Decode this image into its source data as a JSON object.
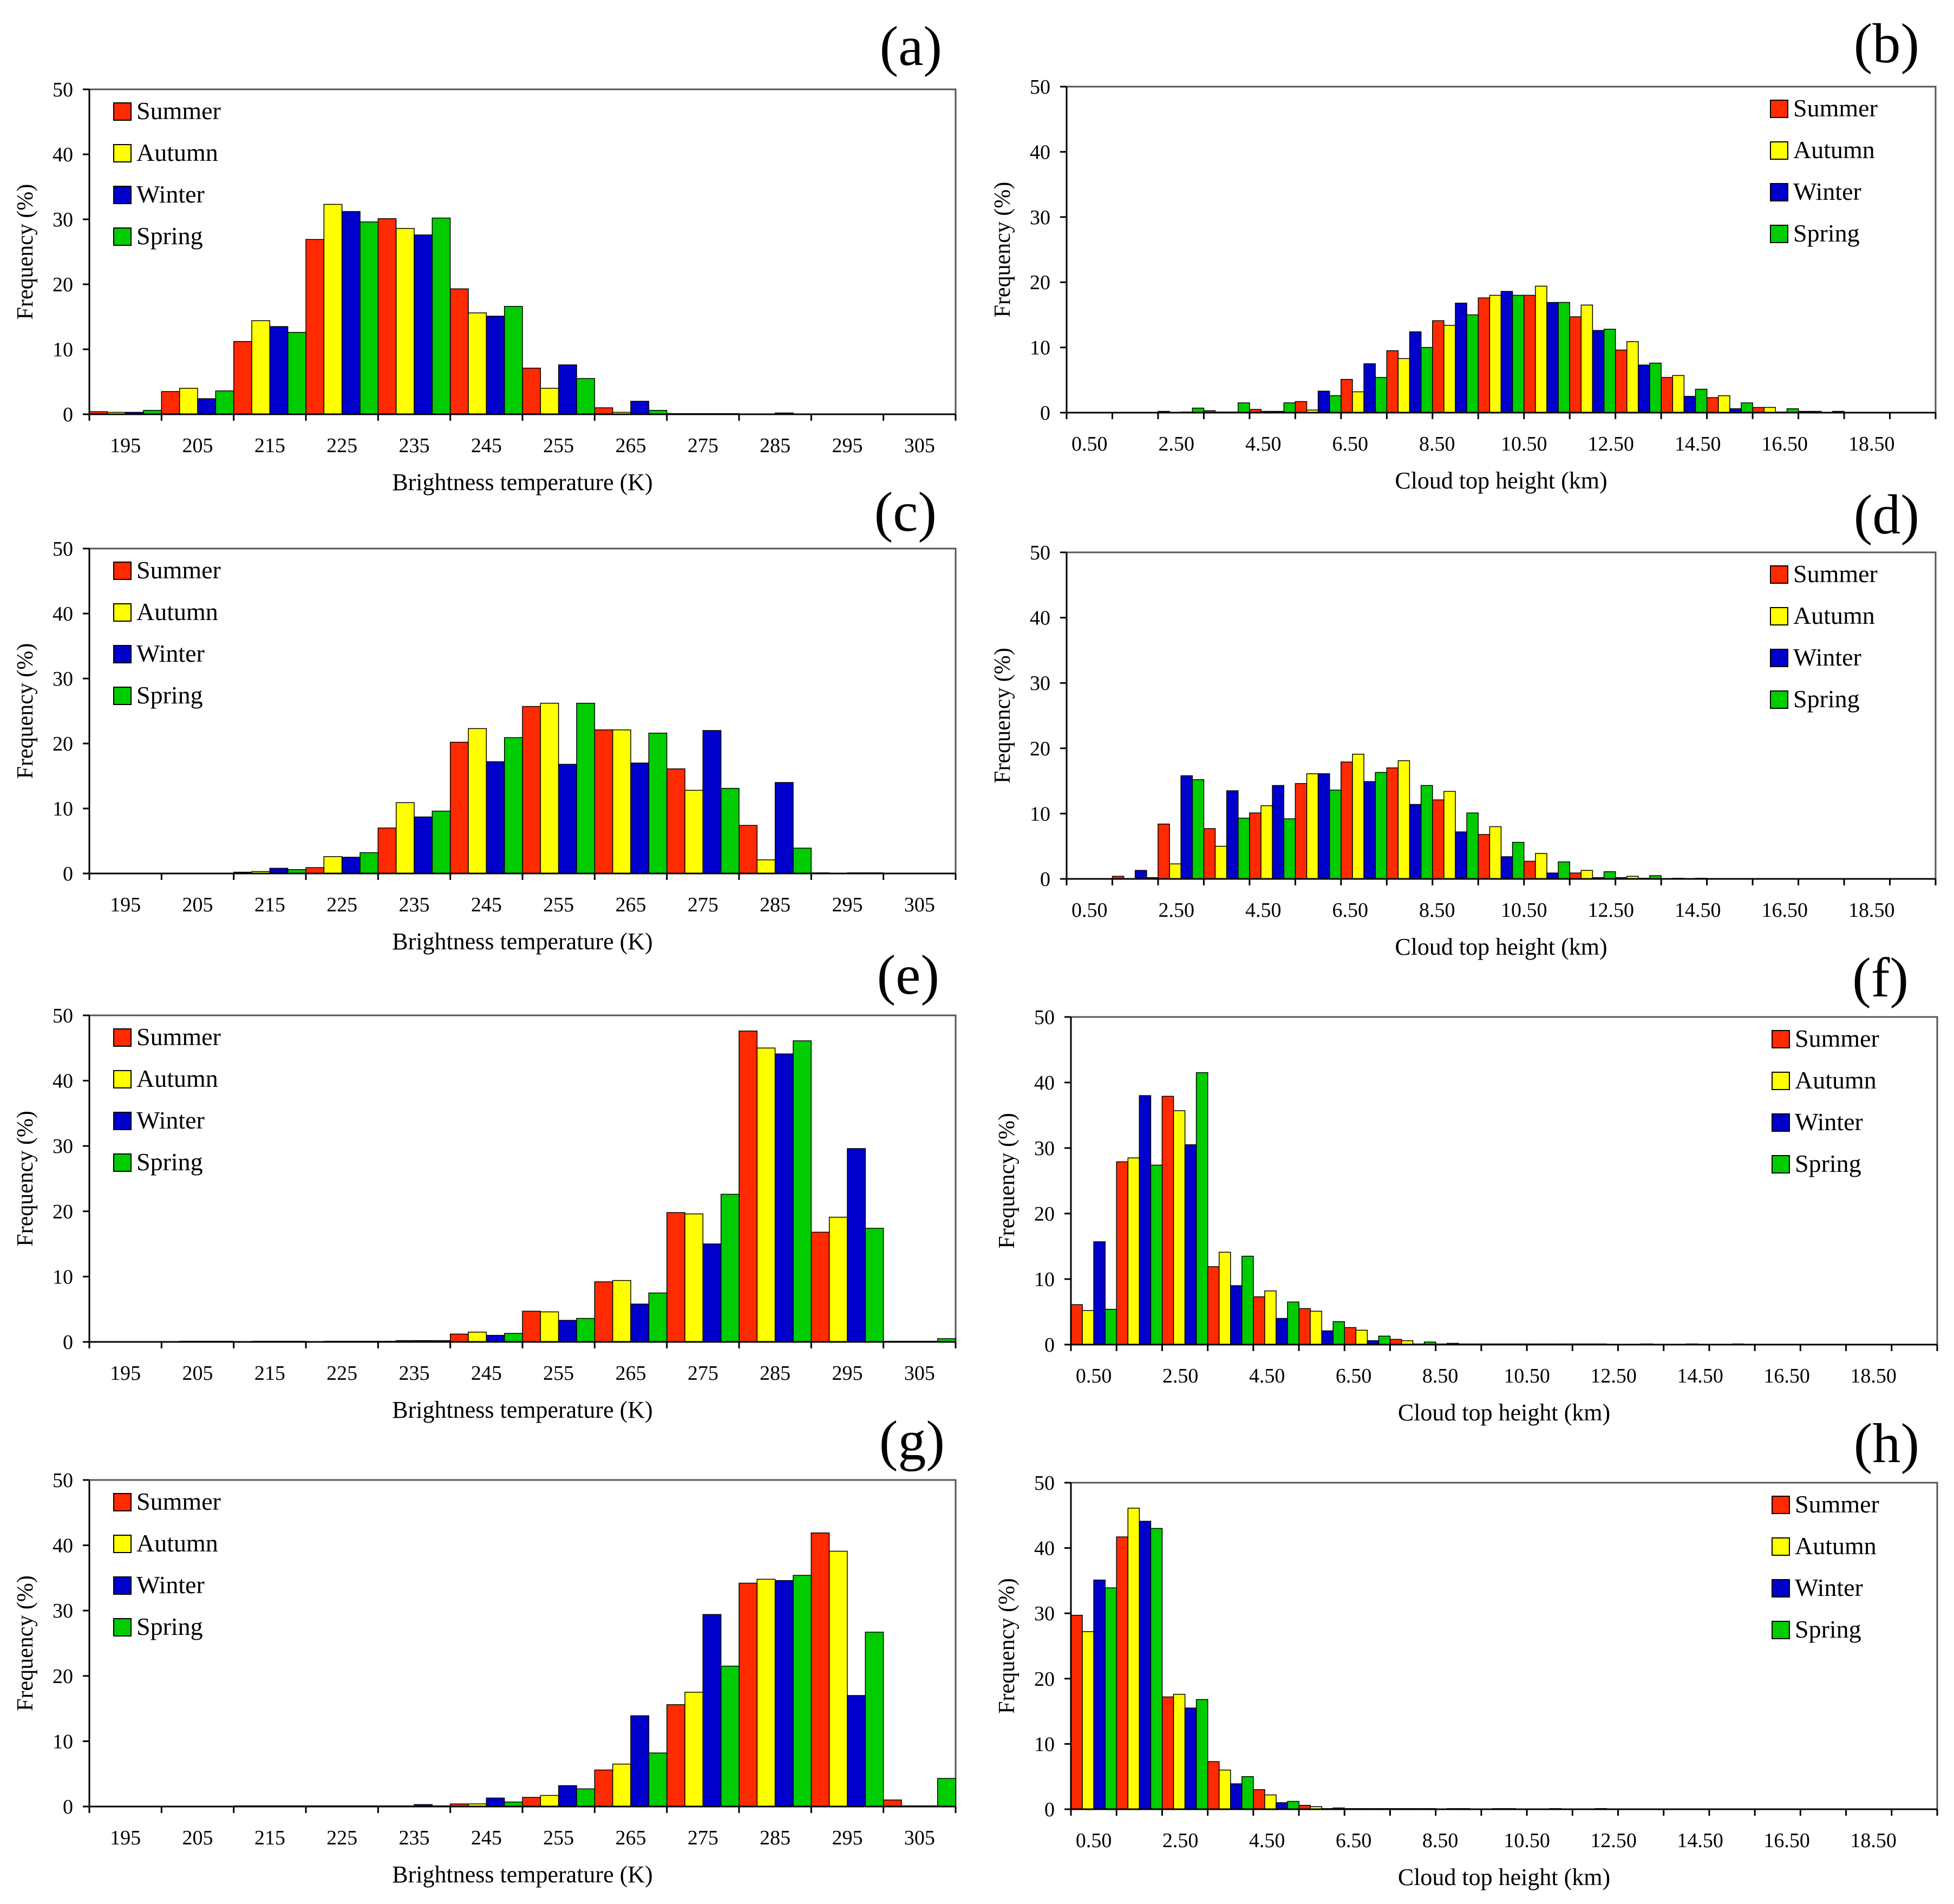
{
  "colors": {
    "summer": "#ff2a00",
    "autumn": "#ffff00",
    "winter": "#0000cc",
    "spring": "#00cc00",
    "axis": "#000000",
    "frame": "#555555"
  },
  "chart_data": [
    {
      "type": "bar",
      "panel_label": "(a)",
      "xlabel": "Brightness temperature (K)",
      "ylabel": "Frequency (%)",
      "ylim": [
        0,
        50
      ],
      "yticks": [
        0,
        10,
        20,
        30,
        40,
        50
      ],
      "xlim": [
        190,
        310
      ],
      "bin_width": 10,
      "bin_start": 190,
      "xticks": [
        "195",
        "205",
        "215",
        "225",
        "235",
        "245",
        "255",
        "265",
        "275",
        "285",
        "295",
        "305"
      ],
      "legend": "top-left",
      "series": [
        {
          "name": "Summer",
          "values": [
            0.4,
            3.5,
            11.2,
            26.9,
            30.1,
            19.3,
            7.1,
            1.0,
            0.1,
            0.0,
            0.0,
            0.0
          ]
        },
        {
          "name": "Autumn",
          "values": [
            0.3,
            4.0,
            14.4,
            32.3,
            28.6,
            15.6,
            4.0,
            0.3,
            0.1,
            0.0,
            0.0,
            0.0
          ]
        },
        {
          "name": "Winter",
          "values": [
            0.3,
            2.4,
            13.5,
            31.2,
            27.6,
            15.1,
            7.6,
            2.0,
            0.1,
            0.2,
            0.0,
            0.0
          ]
        },
        {
          "name": "Spring",
          "values": [
            0.6,
            3.6,
            12.6,
            29.6,
            30.2,
            16.6,
            5.5,
            0.6,
            0.1,
            0.0,
            0.0,
            0.0
          ]
        }
      ]
    },
    {
      "type": "bar",
      "panel_label": "(b)",
      "xlabel": "Cloud top height (km)",
      "ylabel": "Frequency (%)",
      "ylim": [
        0,
        50
      ],
      "yticks": [
        0,
        10,
        20,
        30,
        40,
        50
      ],
      "xlim": [
        0,
        19
      ],
      "bin_width": 1,
      "bin_start": 0,
      "xticks": [
        "0.50",
        "2.50",
        "4.50",
        "6.50",
        "8.50",
        "10.50",
        "12.50",
        "14.50",
        "16.50",
        "18.50"
      ],
      "legend": "top-right",
      "series": [
        {
          "name": "Summer",
          "values": [
            0.0,
            0.0,
            0.2,
            0.3,
            0.5,
            1.7,
            5.1,
            9.5,
            14.1,
            17.6,
            18.0,
            14.7,
            9.6,
            5.4,
            2.3,
            0.8,
            0.2,
            0.0,
            0.0
          ]
        },
        {
          "name": "Autumn",
          "values": [
            0.0,
            0.0,
            0.0,
            0.1,
            0.2,
            0.4,
            3.2,
            8.3,
            13.4,
            18.0,
            19.4,
            16.5,
            10.9,
            5.7,
            2.6,
            0.8,
            0.2,
            0.0,
            0.0
          ]
        },
        {
          "name": "Winter",
          "values": [
            0.0,
            0.0,
            0.1,
            0.1,
            0.2,
            3.3,
            7.5,
            12.4,
            16.8,
            18.6,
            16.9,
            12.6,
            7.3,
            2.5,
            0.6,
            0.1,
            0.0,
            0.0,
            0.0
          ]
        },
        {
          "name": "Spring",
          "values": [
            0.0,
            0.0,
            0.7,
            1.5,
            1.5,
            2.6,
            5.4,
            10.0,
            15.0,
            18.0,
            16.9,
            12.8,
            7.6,
            3.6,
            1.5,
            0.6,
            0.2,
            0.0,
            0.0
          ]
        }
      ]
    },
    {
      "type": "bar",
      "panel_label": "(c)",
      "xlabel": "Brightness temperature (K)",
      "ylabel": "Frequency (%)",
      "ylim": [
        0,
        50
      ],
      "yticks": [
        0,
        10,
        20,
        30,
        40,
        50
      ],
      "xlim": [
        190,
        310
      ],
      "bin_width": 10,
      "bin_start": 190,
      "xticks": [
        "195",
        "205",
        "215",
        "225",
        "235",
        "245",
        "255",
        "265",
        "275",
        "285",
        "295",
        "305"
      ],
      "legend": "top-left",
      "series": [
        {
          "name": "Summer",
          "values": [
            0.0,
            0.0,
            0.2,
            0.9,
            7.0,
            20.2,
            25.7,
            22.1,
            16.1,
            7.4,
            0.1,
            0.0
          ]
        },
        {
          "name": "Autumn",
          "values": [
            0.0,
            0.0,
            0.3,
            2.6,
            10.9,
            22.3,
            26.2,
            22.1,
            12.8,
            2.1,
            0.0,
            0.0
          ]
        },
        {
          "name": "Winter",
          "values": [
            0.0,
            0.0,
            0.8,
            2.5,
            8.7,
            17.2,
            16.8,
            17.0,
            22.0,
            14.0,
            0.1,
            0.0
          ]
        },
        {
          "name": "Spring",
          "values": [
            0.0,
            0.0,
            0.6,
            3.2,
            9.6,
            20.9,
            26.2,
            21.6,
            13.1,
            3.9,
            0.1,
            0.0
          ]
        }
      ]
    },
    {
      "type": "bar",
      "panel_label": "(d)",
      "xlabel": "Cloud top height (km)",
      "ylabel": "Frequency (%)",
      "ylim": [
        0,
        50
      ],
      "yticks": [
        0,
        10,
        20,
        30,
        40,
        50
      ],
      "xlim": [
        0,
        19
      ],
      "bin_width": 1,
      "bin_start": 0,
      "xticks": [
        "0.50",
        "2.50",
        "4.50",
        "6.50",
        "8.50",
        "10.50",
        "12.50",
        "14.50",
        "16.50",
        "18.50"
      ],
      "legend": "top-right",
      "series": [
        {
          "name": "Summer",
          "values": [
            0.0,
            0.4,
            8.4,
            7.7,
            10.1,
            14.6,
            17.9,
            17.0,
            12.1,
            6.8,
            2.7,
            0.9,
            0.2,
            0.0,
            0.0,
            0.0,
            0.0,
            0.0,
            0.0
          ]
        },
        {
          "name": "Autumn",
          "values": [
            0.0,
            0.0,
            2.3,
            5.0,
            11.2,
            16.1,
            19.1,
            18.1,
            13.4,
            8.0,
            3.9,
            1.3,
            0.4,
            0.1,
            0.0,
            0.0,
            0.0,
            0.0,
            0.0
          ]
        },
        {
          "name": "Winter",
          "values": [
            0.0,
            1.3,
            15.8,
            13.5,
            14.3,
            16.1,
            14.9,
            11.4,
            7.2,
            3.4,
            0.9,
            0.2,
            0.1,
            0.0,
            0.0,
            0.0,
            0.0,
            0.0,
            0.0
          ]
        },
        {
          "name": "Spring",
          "values": [
            0.0,
            0.2,
            15.2,
            9.3,
            9.2,
            13.6,
            16.3,
            14.3,
            10.1,
            5.6,
            2.6,
            1.1,
            0.5,
            0.1,
            0.0,
            0.0,
            0.0,
            0.0,
            0.0
          ]
        }
      ]
    },
    {
      "type": "bar",
      "panel_label": "(e)",
      "xlabel": "Brightness temperature (K)",
      "ylabel": "Frequency (%)",
      "ylim": [
        0,
        50
      ],
      "yticks": [
        0,
        10,
        20,
        30,
        40,
        50
      ],
      "xlim": [
        190,
        310
      ],
      "bin_width": 10,
      "bin_start": 190,
      "xticks": [
        "195",
        "205",
        "215",
        "225",
        "235",
        "245",
        "255",
        "265",
        "275",
        "285",
        "295",
        "305"
      ],
      "legend": "top-left",
      "series": [
        {
          "name": "Summer",
          "values": [
            0.0,
            0.0,
            0.0,
            0.0,
            0.1,
            1.2,
            4.7,
            9.2,
            19.8,
            47.6,
            16.8,
            0.1
          ]
        },
        {
          "name": "Autumn",
          "values": [
            0.0,
            0.1,
            0.1,
            0.1,
            0.2,
            1.5,
            4.6,
            9.4,
            19.6,
            45.0,
            19.1,
            0.1
          ]
        },
        {
          "name": "Winter",
          "values": [
            0.0,
            0.1,
            0.1,
            0.1,
            0.2,
            1.0,
            3.3,
            5.8,
            15.0,
            44.1,
            29.6,
            0.1
          ]
        },
        {
          "name": "Spring",
          "values": [
            0.0,
            0.1,
            0.1,
            0.1,
            0.2,
            1.3,
            3.6,
            7.5,
            22.6,
            46.1,
            17.4,
            0.5
          ]
        }
      ]
    },
    {
      "type": "bar",
      "panel_label": "(f)",
      "xlabel": "Cloud top height (km)",
      "ylabel": "Frequency (%)",
      "ylim": [
        0,
        50
      ],
      "yticks": [
        0,
        10,
        20,
        30,
        40,
        50
      ],
      "xlim": [
        0,
        19
      ],
      "bin_width": 1,
      "bin_start": 0,
      "xticks": [
        "0.50",
        "2.50",
        "4.50",
        "6.50",
        "8.50",
        "10.50",
        "12.50",
        "14.50",
        "16.50",
        "18.50"
      ],
      "legend": "top-right",
      "series": [
        {
          "name": "Summer",
          "values": [
            6.1,
            27.9,
            37.9,
            11.9,
            7.3,
            5.5,
            2.6,
            0.8,
            0.1,
            0.1,
            0.1,
            0.1,
            0.0,
            0.0,
            0.0,
            0.0,
            0.0,
            0.0,
            0.0
          ]
        },
        {
          "name": "Autumn",
          "values": [
            5.2,
            28.5,
            35.7,
            14.1,
            8.2,
            5.1,
            2.2,
            0.6,
            0.2,
            0.1,
            0.1,
            0.1,
            0.0,
            0.0,
            0.0,
            0.0,
            0.0,
            0.0,
            0.0
          ]
        },
        {
          "name": "Winter",
          "values": [
            15.7,
            38.0,
            30.5,
            9.0,
            4.0,
            2.1,
            0.6,
            0.1,
            0.1,
            0.1,
            0.1,
            0.1,
            0.1,
            0.1,
            0.1,
            0.0,
            0.0,
            0.0,
            0.0
          ]
        },
        {
          "name": "Spring",
          "values": [
            5.4,
            27.4,
            41.5,
            13.5,
            6.5,
            3.5,
            1.3,
            0.4,
            0.1,
            0.1,
            0.1,
            0.0,
            0.0,
            0.0,
            0.0,
            0.0,
            0.0,
            0.0,
            0.0
          ]
        }
      ]
    },
    {
      "type": "bar",
      "panel_label": "(g)",
      "xlabel": "Brightness temperature (K)",
      "ylabel": "Frequency (%)",
      "ylim": [
        0,
        50
      ],
      "yticks": [
        0,
        10,
        20,
        30,
        40,
        50
      ],
      "xlim": [
        190,
        310
      ],
      "bin_width": 10,
      "bin_start": 190,
      "xticks": [
        "195",
        "205",
        "215",
        "225",
        "235",
        "245",
        "255",
        "265",
        "275",
        "285",
        "295",
        "305"
      ],
      "legend": "top-left",
      "series": [
        {
          "name": "Summer",
          "values": [
            0.0,
            0.0,
            0.1,
            0.1,
            0.1,
            0.4,
            1.4,
            5.6,
            15.6,
            34.2,
            41.9,
            1.0
          ]
        },
        {
          "name": "Autumn",
          "values": [
            0.0,
            0.0,
            0.1,
            0.1,
            0.1,
            0.4,
            1.7,
            6.5,
            17.5,
            34.8,
            39.1,
            0.1
          ]
        },
        {
          "name": "Winter",
          "values": [
            0.0,
            0.0,
            0.1,
            0.1,
            0.3,
            1.3,
            3.2,
            13.9,
            29.4,
            34.6,
            17.0,
            0.1
          ]
        },
        {
          "name": "Spring",
          "values": [
            0.0,
            0.0,
            0.1,
            0.1,
            0.1,
            0.7,
            2.7,
            8.2,
            21.5,
            35.4,
            26.7,
            4.3
          ]
        }
      ]
    },
    {
      "type": "bar",
      "panel_label": "(h)",
      "xlabel": "Cloud top height (km)",
      "ylabel": "Frequency (%)",
      "ylim": [
        0,
        50
      ],
      "yticks": [
        0,
        10,
        20,
        30,
        40,
        50
      ],
      "xlim": [
        0,
        19
      ],
      "bin_width": 1,
      "bin_start": 0,
      "xticks": [
        "0.50",
        "2.50",
        "4.50",
        "6.50",
        "8.50",
        "10.50",
        "12.50",
        "14.50",
        "16.50",
        "18.50"
      ],
      "legend": "top-right",
      "series": [
        {
          "name": "Summer",
          "values": [
            29.7,
            41.7,
            17.2,
            7.3,
            3.0,
            0.6,
            0.1,
            0.1,
            0.0,
            0.0,
            0.0,
            0.0,
            0.0,
            0.0,
            0.0,
            0.0,
            0.0,
            0.0,
            0.0
          ]
        },
        {
          "name": "Autumn",
          "values": [
            27.2,
            46.1,
            17.6,
            6.0,
            2.2,
            0.4,
            0.1,
            0.1,
            0.1,
            0.1,
            0.0,
            0.0,
            0.0,
            0.0,
            0.0,
            0.0,
            0.0,
            0.0,
            0.0
          ]
        },
        {
          "name": "Winter",
          "values": [
            35.1,
            44.1,
            15.5,
            3.9,
            1.0,
            0.1,
            0.1,
            0.1,
            0.1,
            0.1,
            0.1,
            0.1,
            0.0,
            0.0,
            0.0,
            0.0,
            0.0,
            0.0,
            0.0
          ]
        },
        {
          "name": "Spring",
          "values": [
            33.9,
            43.0,
            16.8,
            5.0,
            1.2,
            0.2,
            0.1,
            0.1,
            0.0,
            0.0,
            0.0,
            0.0,
            0.0,
            0.0,
            0.0,
            0.0,
            0.0,
            0.0,
            0.0
          ]
        }
      ]
    }
  ]
}
